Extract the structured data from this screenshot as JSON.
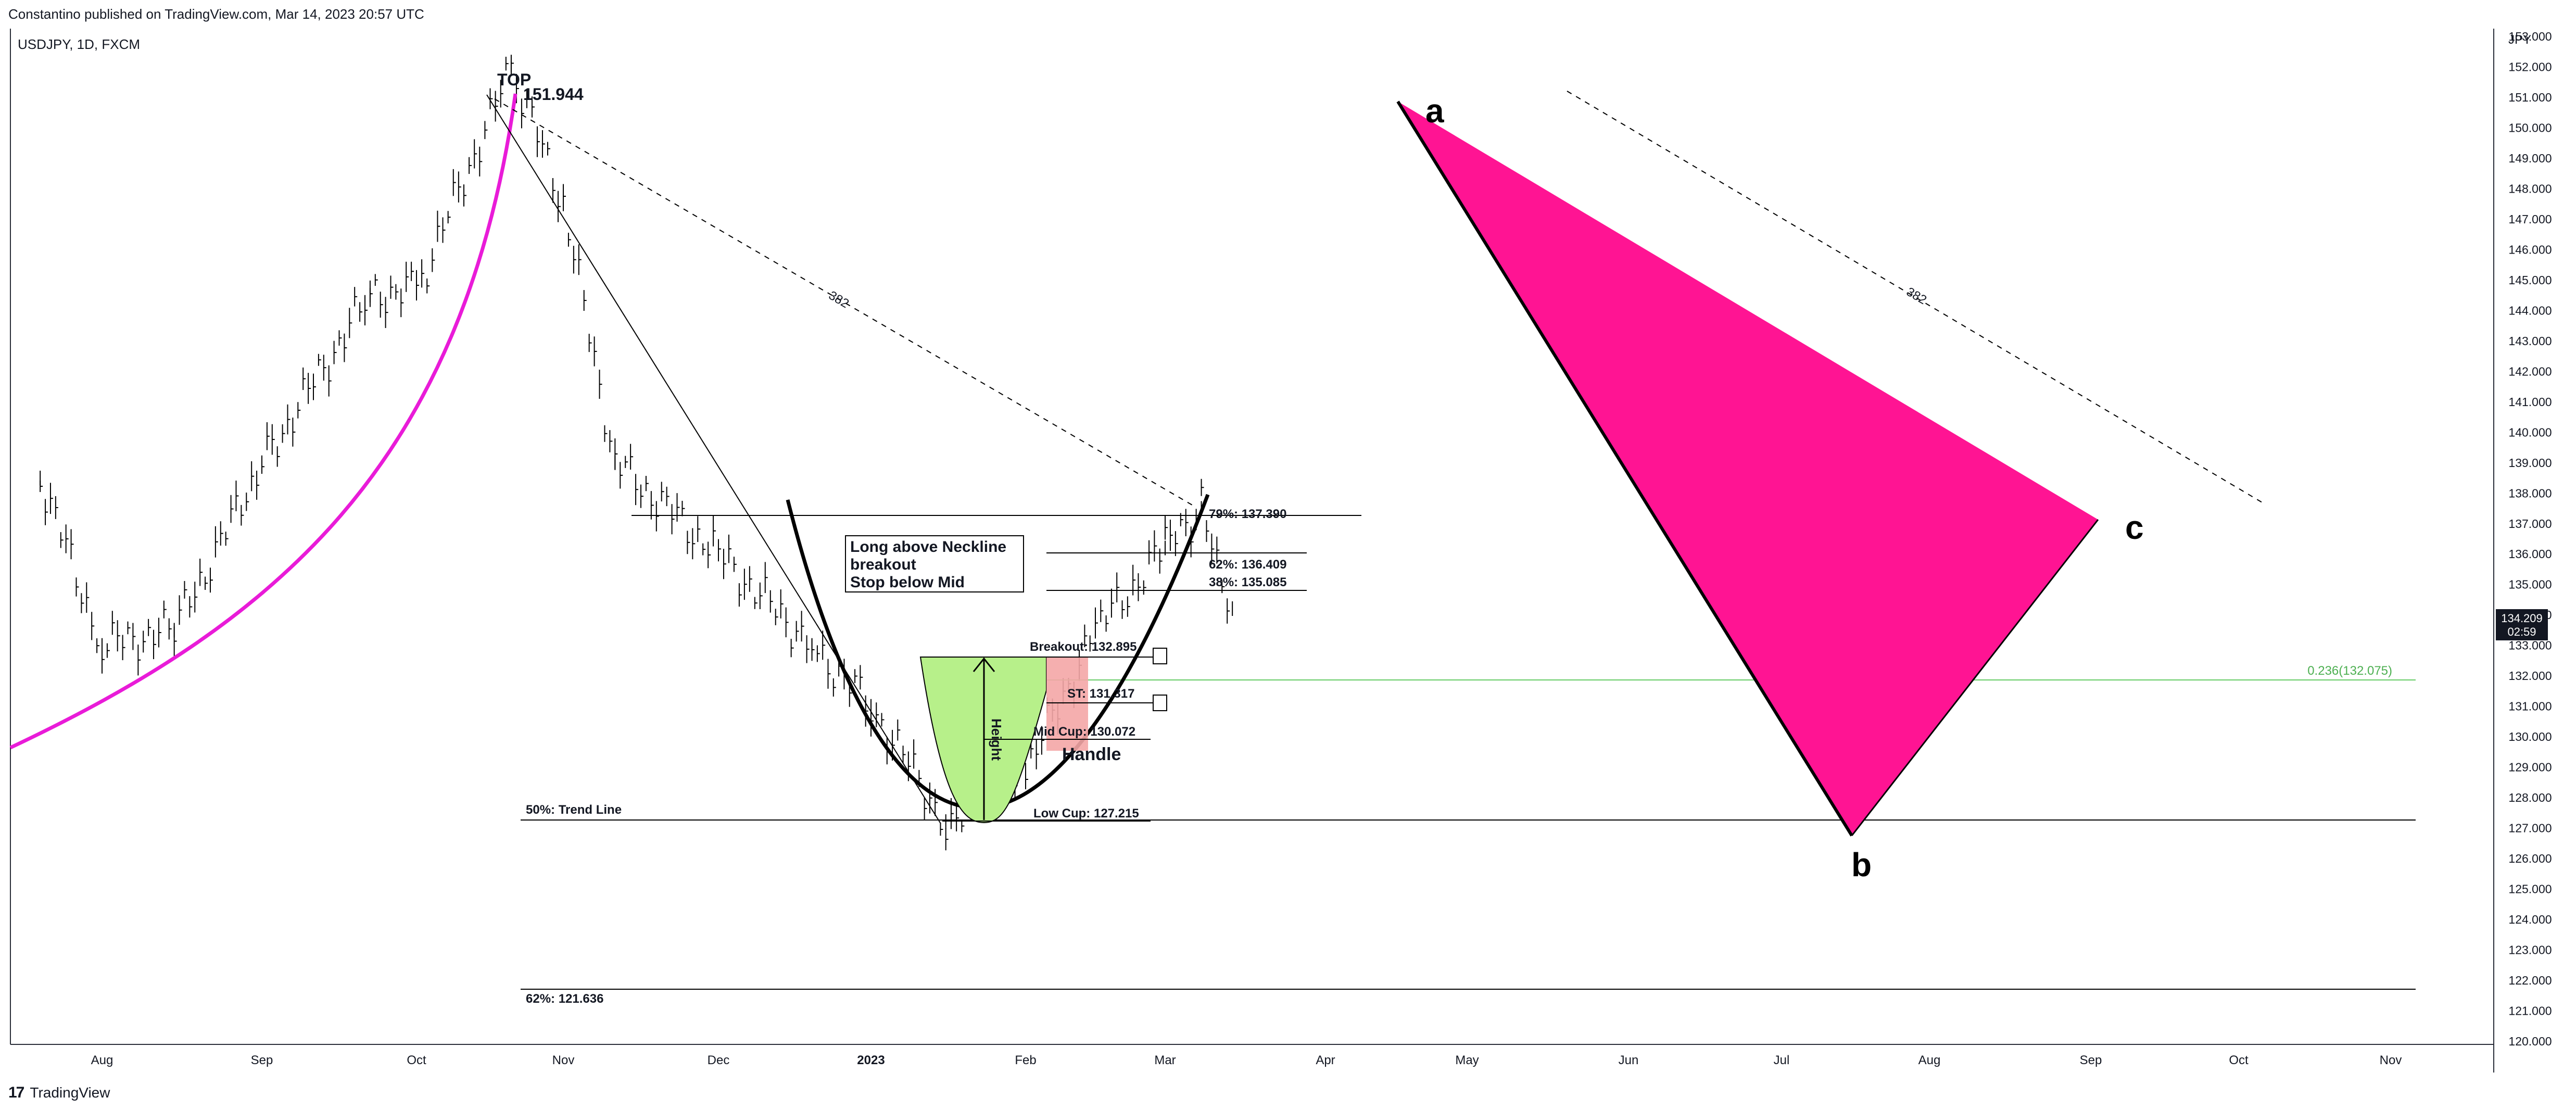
{
  "header": {
    "published": "Constantino published on TradingView.com, Mar 14, 2023 20:57 UTC"
  },
  "symbol": {
    "label": "USDJPY, 1D, FXCM"
  },
  "footer": {
    "brand": "TradingView"
  },
  "colors": {
    "pink": "#ff1493",
    "magenta": "#e91bd8",
    "green_fill": "#b7f08a",
    "red_fill": "#f4a6a6",
    "green_line": "#66cc66"
  },
  "icons": {
    "logo": "tradingview-logo-icon"
  },
  "chart_data": {
    "type": "line",
    "title": "",
    "xlabel": "",
    "ylabel": "",
    "y_axis_label": "JPY",
    "ylim": [
      120,
      153
    ],
    "y_ticks": [
      "120.000",
      "121.000",
      "122.000",
      "123.000",
      "124.000",
      "125.000",
      "126.000",
      "127.000",
      "128.000",
      "129.000",
      "130.000",
      "131.000",
      "132.000",
      "133.000",
      "134.000",
      "135.000",
      "136.000",
      "137.000",
      "138.000",
      "139.000",
      "140.000",
      "141.000",
      "142.000",
      "143.000",
      "144.000",
      "145.000",
      "146.000",
      "147.000",
      "148.000",
      "149.000",
      "150.000",
      "151.000",
      "152.000",
      "153.000"
    ],
    "x_ticks": [
      "Aug",
      "Sep",
      "Oct",
      "Nov",
      "Dec",
      "2023",
      "Feb",
      "Mar",
      "Apr",
      "May",
      "Jun",
      "Jul",
      "Aug",
      "Sep",
      "Oct",
      "Nov"
    ],
    "grid": false,
    "series": [
      {
        "name": "",
        "x": [
          "2022-07-20",
          "2022-08-01",
          "2022-08-15",
          "2022-09-01",
          "2022-09-22",
          "2022-10-01",
          "2022-10-21",
          "2022-11-01",
          "2022-11-11",
          "2022-12-01",
          "2022-12-20",
          "2023-01-01",
          "2023-01-16",
          "2023-02-01",
          "2023-02-15",
          "2023-03-01",
          "2023-03-08",
          "2023-03-14"
        ],
        "y": [
          138.5,
          133.0,
          133.5,
          139.0,
          144.5,
          144.7,
          151.944,
          147.5,
          139.0,
          136.0,
          133.0,
          131.0,
          127.215,
          128.9,
          133.5,
          136.2,
          137.5,
          134.209
        ]
      }
    ],
    "current_price": {
      "value": "134.209",
      "countdown": "02:59"
    },
    "annotations": {
      "top_label": "TOP",
      "top_value": "151.944",
      "trend_line": "50%: Trend Line",
      "fib_62_low": "62%: 121.636",
      "fib_79": "79%: 137.390",
      "fib_62": "62%: 136.409",
      "fib_38": "38%: 135.085",
      "breakout": "Breakout: 132.895",
      "stop": "ST: 131.317",
      "mid_cup": "Mid Cup: 130.072",
      "low_cup": "Low Cup: 127.215",
      "handle": "Handle",
      "height": "Height",
      "note_line1": "Long above Neckline",
      "note_line2": "breakout",
      "note_line3": "Stop below Mid",
      "fib_0236": "0.236(132.075)",
      "dashed_382_left": "382",
      "dashed_382_right": "382",
      "point_a": "a",
      "point_b": "b",
      "point_c": "c"
    }
  }
}
